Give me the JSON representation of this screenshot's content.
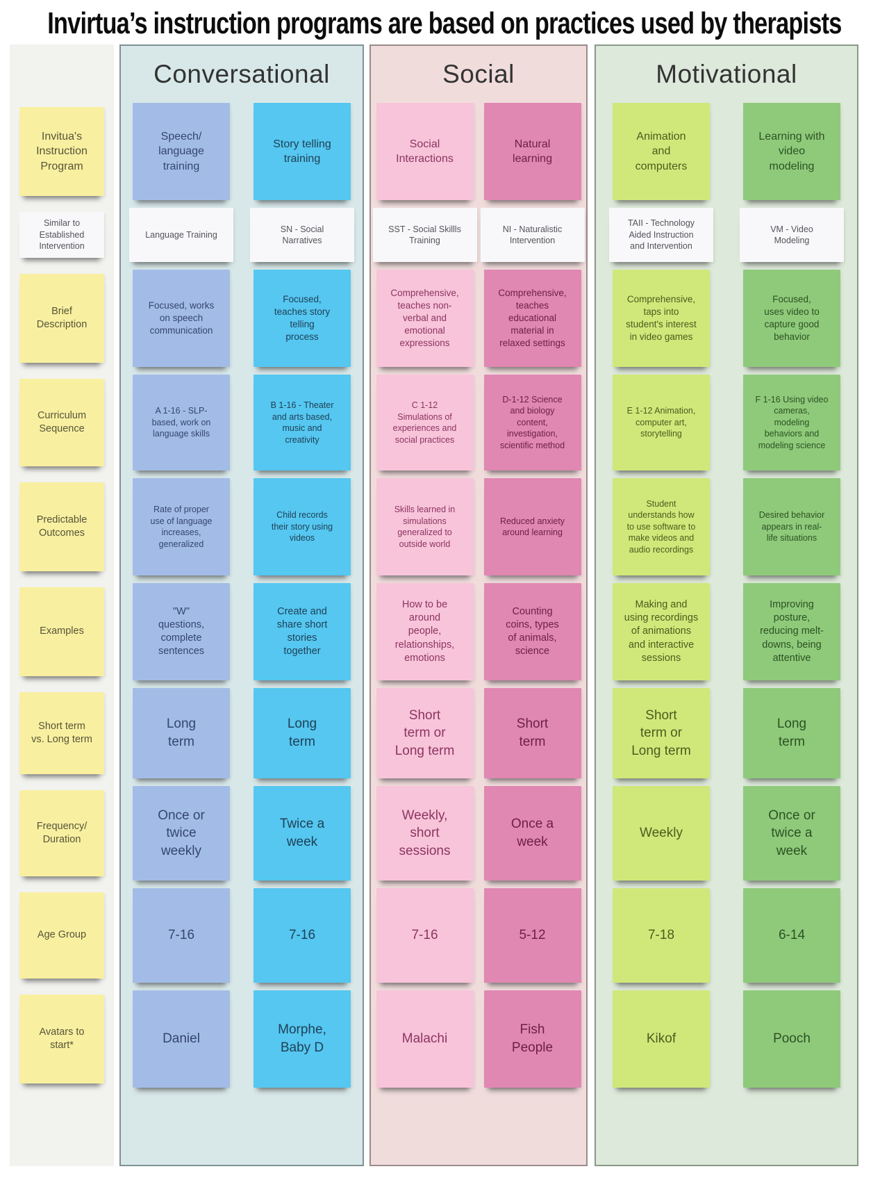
{
  "title": "Invirtua’s instruction programs are based on practices used by therapists",
  "colors": {
    "label_note": "#f8f0a0",
    "intervention_note": "#f8f8fa",
    "conversational_panel_bg": "#d8e8e9",
    "social_panel_bg": "#f1dcdc",
    "motivational_panel_bg": "#dde9da",
    "blue_note": "#a3bce7",
    "cyan_note": "#55c7f0",
    "pink_note": "#f8c4da",
    "dark_pink_note": "#e087b2",
    "lime_note": "#d0e87a",
    "green_note": "#8fca7b"
  },
  "row_labels": [
    "Invitua's\nInstruction\nProgram",
    "Similar to\nEstablished\nIntervention",
    "Brief\nDescription",
    "Curriculum\nSequence",
    "Predictable\nOutcomes",
    "Examples",
    "Short term\nvs. Long term",
    "Frequency/\nDuration",
    "Age Group",
    "Avatars to\nstart*"
  ],
  "panels": [
    {
      "title": "Conversational",
      "columns": [
        {
          "rows": [
            "Speech/\nlanguage\ntraining",
            "Language Training",
            "Focused, works\non speech\ncommunication",
            "A 1-16 - SLP-\nbased, work on\nlanguage skills",
            "Rate of proper\nuse of language\nincreases,\ngeneralized",
            "\"W\"\nquestions,\ncomplete\nsentences",
            "Long\nterm",
            "Once or\ntwice\nweekly",
            "7-16",
            "Daniel"
          ]
        },
        {
          "rows": [
            "Story telling\ntraining",
            "SN - Social\nNarratives",
            "Focused,\nteaches story\ntelling\nprocess",
            "B 1-16 - Theater\nand arts based,\nmusic and\ncreativity",
            "Child records\ntheir story using\nvideos",
            "Create and\nshare short\nstories\ntogether",
            "Long\nterm",
            "Twice a\nweek",
            "7-16",
            "Morphe,\nBaby D"
          ]
        }
      ]
    },
    {
      "title": "Social",
      "columns": [
        {
          "rows": [
            "Social\nInteractions",
            "SST - Social Skillls\nTraining",
            "Comprehensive,\nteaches non-\nverbal and\nemotional\nexpressions",
            "C 1-12\nSimulations of\nexperiences and\nsocial practices",
            "Skills learned in\nsimulations\ngeneralized to\noutside world",
            "How to be\naround\npeople,\nrelationships,\nemotions",
            "Short\nterm or\nLong term",
            "Weekly,\nshort\nsessions",
            "7-16",
            "Malachi"
          ]
        },
        {
          "rows": [
            "Natural\nlearning",
            "NI - Naturalistic\nIntervention",
            "Comprehensive,\nteaches\neducational\nmaterial in\nrelaxed settings",
            "D-1-12 Science\nand biology\ncontent,\ninvestigation,\nscientific method",
            "Reduced anxiety\naround learning",
            "Counting\ncoins, types\nof animals,\nscience",
            "Short\nterm",
            "Once a\nweek",
            "5-12",
            "Fish\nPeople"
          ]
        }
      ]
    },
    {
      "title": "Motivational",
      "columns": [
        {
          "rows": [
            "Animation\nand\ncomputers",
            "TAII - Technology\nAided Instruction\nand Intervention",
            "Comprehensive,\ntaps into\nstudent's interest\nin video games",
            "E 1-12 Animation,\ncomputer art,\nstorytelling",
            "Student\nunderstands how\nto use software to\nmake videos and\naudio recordings",
            "Making and\nusing recordings\nof animations\nand interactive\nsessions",
            "Short\nterm or\nLong term",
            "Weekly",
            "7-18",
            "Kikof"
          ]
        },
        {
          "rows": [
            "Learning with\nvideo\nmodeling",
            "VM - Video\nModeling",
            "Focused,\nuses video to\ncapture good\nbehavior",
            "F 1-16 Using video\ncameras,\nmodeling\nbehaviors and\nmodeling science",
            "Desired behavior\nappears in real-\nlife situations",
            "Improving\nposture,\nreducing melt-\ndowns, being\nattentive",
            "Long\nterm",
            "Once or\ntwice a\nweek",
            "6-14",
            "Pooch"
          ]
        }
      ]
    }
  ]
}
